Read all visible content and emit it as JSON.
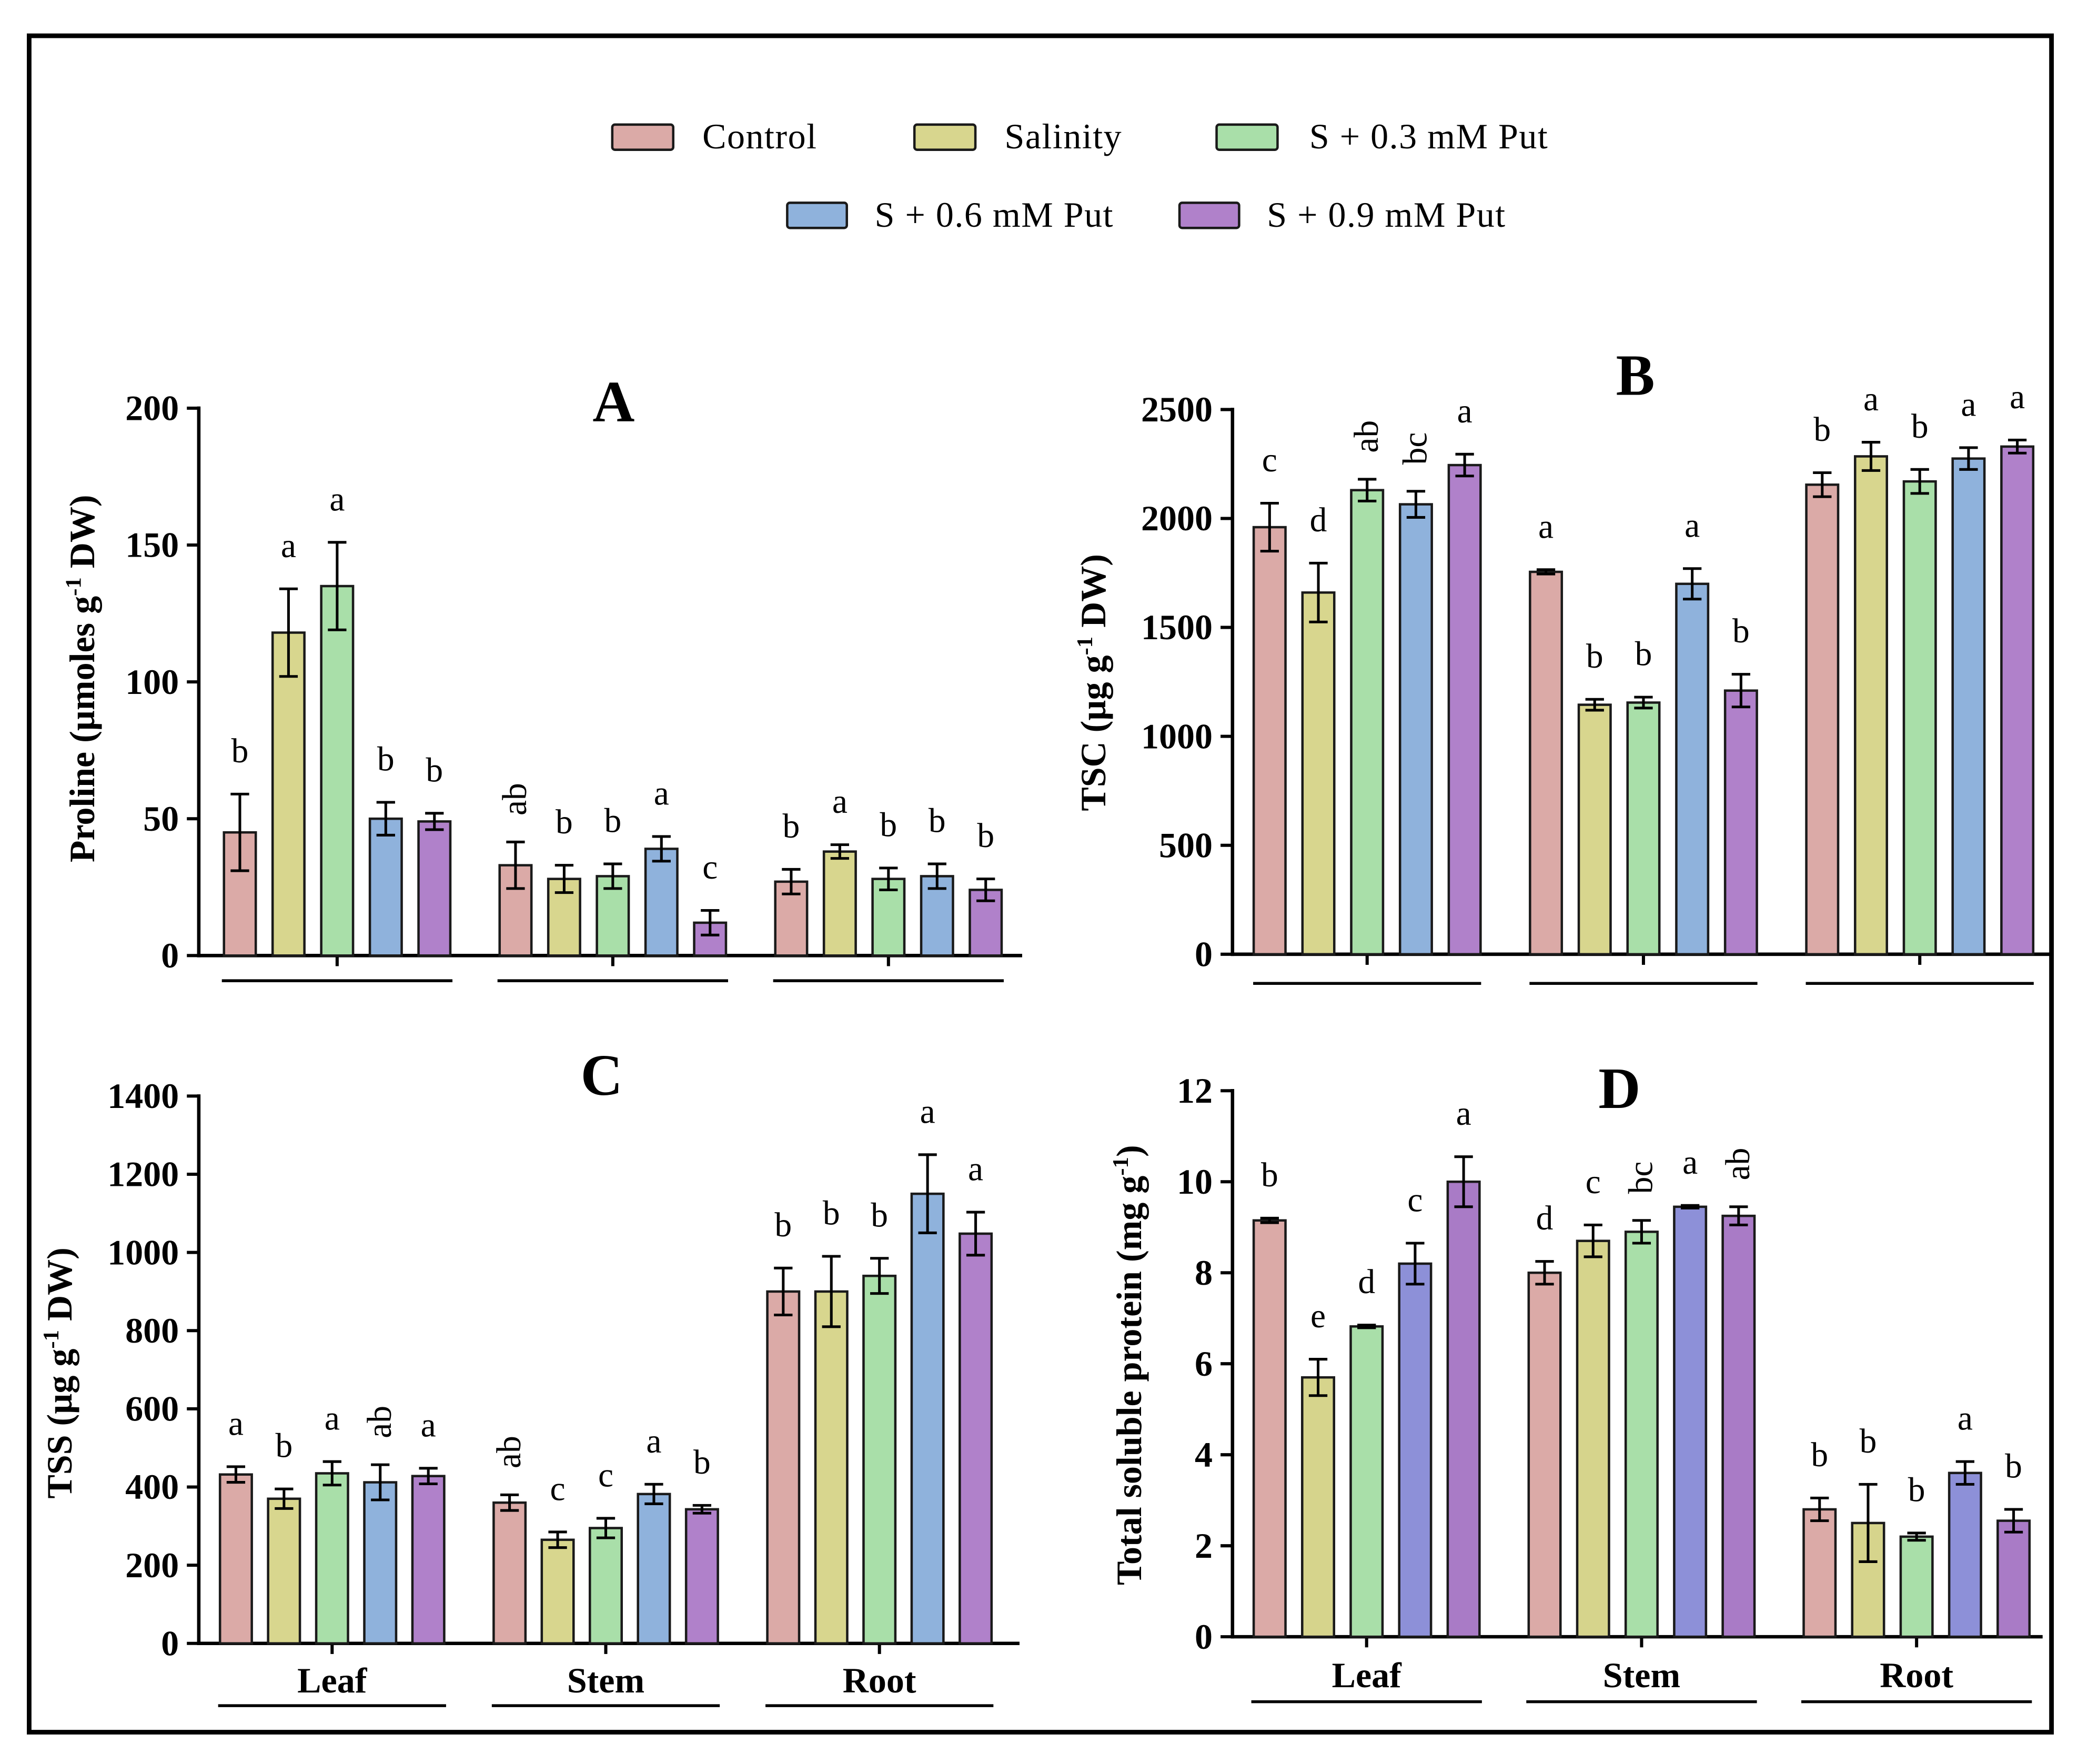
{
  "legend": {
    "items": [
      {
        "label": "Control",
        "color": "#dbaaa7"
      },
      {
        "label": "Salinity",
        "color": "#d8d68e"
      },
      {
        "label": "S + 0.3 mM Put",
        "color": "#a9dfa9"
      },
      {
        "label": "S + 0.6 mM Put",
        "color": "#8fb2dc"
      },
      {
        "label": "S + 0.9 mM Put",
        "color": "#b081ca"
      }
    ]
  },
  "chart_data": [
    {
      "type": "bar",
      "title": "A",
      "ylabel_parts": [
        "Proline (µmoles g",
        "-1",
        " DW)"
      ],
      "ylim": [
        0,
        200
      ],
      "yticks": [
        0,
        50,
        100,
        150,
        200
      ],
      "series": [
        {
          "color": "#dbaaa7",
          "values": [
            45,
            33,
            27
          ],
          "errors": [
            14,
            8.5,
            4.5
          ],
          "letters": [
            "b",
            "ab",
            "b"
          ]
        },
        {
          "color": "#d8d68e",
          "values": [
            118,
            28,
            38
          ],
          "errors": [
            16,
            5,
            2.5
          ],
          "letters": [
            "a",
            "b",
            "a"
          ]
        },
        {
          "color": "#a9dfa9",
          "values": [
            135,
            29,
            28
          ],
          "errors": [
            16,
            4.5,
            4
          ],
          "letters": [
            "a",
            "b",
            "b"
          ]
        },
        {
          "color": "#8fb2dc",
          "values": [
            50,
            39,
            29
          ],
          "errors": [
            6,
            4.5,
            4.5
          ],
          "letters": [
            "b",
            "a",
            "b"
          ]
        },
        {
          "color": "#b081ca",
          "values": [
            49,
            12,
            24
          ],
          "errors": [
            3,
            4.5,
            4
          ],
          "letters": [
            "b",
            "c",
            "b"
          ]
        }
      ]
    },
    {
      "type": "bar",
      "title": "B",
      "ylabel_parts": [
        "TSC (µg g",
        "-1",
        " DW)"
      ],
      "ylim": [
        0,
        2500
      ],
      "yticks": [
        0,
        500,
        1000,
        1500,
        2000,
        2500
      ],
      "series": [
        {
          "color": "#dbaaa7",
          "values": [
            1960,
            1755,
            2155
          ],
          "errors": [
            110,
            10,
            55
          ],
          "letters": [
            "c",
            "a",
            "b"
          ]
        },
        {
          "color": "#d8d68e",
          "values": [
            1660,
            1145,
            2285
          ],
          "errors": [
            135,
            25,
            65
          ],
          "letters": [
            "d",
            "b",
            "a"
          ]
        },
        {
          "color": "#a9dfa9",
          "values": [
            2130,
            1155,
            2170
          ],
          "errors": [
            50,
            25,
            55
          ],
          "letters": [
            "ab",
            "b",
            "b"
          ]
        },
        {
          "color": "#8fb2dc",
          "values": [
            2065,
            1700,
            2275
          ],
          "errors": [
            60,
            70,
            50
          ],
          "letters": [
            "bc",
            "a",
            "a"
          ]
        },
        {
          "color": "#b081ca",
          "values": [
            2245,
            1210,
            2330
          ],
          "errors": [
            50,
            75,
            30
          ],
          "letters": [
            "a",
            "b",
            "a"
          ]
        }
      ]
    },
    {
      "type": "bar",
      "title": "C",
      "ylabel_parts": [
        "TSS (µg g",
        "-1",
        " DW)"
      ],
      "ylim": [
        0,
        1400
      ],
      "yticks": [
        0,
        200,
        400,
        600,
        800,
        1000,
        1200,
        1400
      ],
      "categories": [
        "Leaf",
        "Stem",
        "Root"
      ],
      "series": [
        {
          "color": "#dbaaa7",
          "values": [
            432,
            360,
            900
          ],
          "errors": [
            20,
            20,
            60
          ],
          "letters": [
            "a",
            "ab",
            "b"
          ]
        },
        {
          "color": "#d8d68e",
          "values": [
            370,
            265,
            900
          ],
          "errors": [
            25,
            20,
            90
          ],
          "letters": [
            "b",
            "c",
            "b"
          ]
        },
        {
          "color": "#a9dfa9",
          "values": [
            435,
            295,
            940
          ],
          "errors": [
            30,
            25,
            45
          ],
          "letters": [
            "a",
            "c",
            "b"
          ]
        },
        {
          "color": "#8fb2dc",
          "values": [
            412,
            382,
            1150
          ],
          "errors": [
            45,
            25,
            100
          ],
          "letters": [
            "ab",
            "a",
            "a"
          ]
        },
        {
          "color": "#b081ca",
          "values": [
            428,
            343,
            1048
          ],
          "errors": [
            20,
            10,
            55
          ],
          "letters": [
            "a",
            "b",
            "a"
          ]
        }
      ]
    },
    {
      "type": "bar",
      "title": "D",
      "ylabel_parts": [
        "Total soluble protein (mg g",
        "-1",
        ")"
      ],
      "ylim": [
        0,
        12
      ],
      "yticks": [
        0,
        2,
        4,
        6,
        8,
        10,
        12
      ],
      "categories": [
        "Leaf",
        "Stem",
        "Root"
      ],
      "series": [
        {
          "color": "#dbaaa7",
          "values": [
            9.15,
            8.0,
            2.8
          ],
          "errors": [
            0.05,
            0.25,
            0.25
          ],
          "letters": [
            "b",
            "d",
            "b"
          ]
        },
        {
          "color": "#d6d48c",
          "values": [
            5.7,
            8.7,
            2.5
          ],
          "errors": [
            0.4,
            0.35,
            0.85
          ],
          "letters": [
            "e",
            "c",
            "b"
          ]
        },
        {
          "color": "#a9dfa9",
          "values": [
            6.82,
            8.9,
            2.2
          ],
          "errors": [
            0.03,
            0.25,
            0.08
          ],
          "letters": [
            "d",
            "bc",
            "b"
          ]
        },
        {
          "color": "#8d90d8",
          "values": [
            8.2,
            9.45,
            3.6
          ],
          "errors": [
            0.45,
            0.03,
            0.25
          ],
          "letters": [
            "c",
            "a",
            "a"
          ]
        },
        {
          "color": "#a97bc6",
          "values": [
            10.0,
            9.25,
            2.55
          ],
          "errors": [
            0.55,
            0.2,
            0.25
          ],
          "letters": [
            "a",
            "ab",
            "b"
          ]
        }
      ]
    }
  ]
}
